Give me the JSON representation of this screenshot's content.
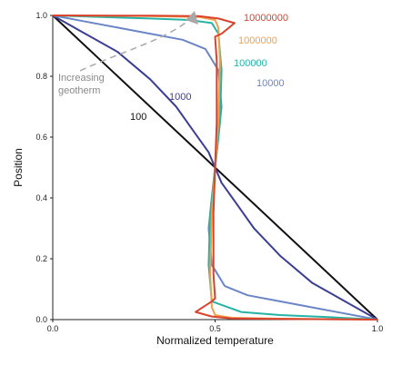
{
  "chart_data": {
    "type": "line",
    "xlabel": "Normalized temperature",
    "ylabel": "Position",
    "xlim": [
      0,
      1
    ],
    "ylim": [
      0,
      1
    ],
    "xticks": [
      "0.0",
      "0.5",
      "1.0"
    ],
    "yticks": [
      "0.0",
      "0.2",
      "0.4",
      "0.6",
      "0.8",
      "1.0"
    ],
    "grid": false,
    "annotation": "Increasing\ngeotherm",
    "series": [
      {
        "name": "100",
        "color": "#111111",
        "points": [
          [
            0,
            1
          ],
          [
            1,
            0
          ]
        ]
      },
      {
        "name": "1000",
        "color": "#3a3f94",
        "points": [
          [
            0,
            1
          ],
          [
            0.1,
            0.94
          ],
          [
            0.2,
            0.88
          ],
          [
            0.3,
            0.79
          ],
          [
            0.38,
            0.7
          ],
          [
            0.44,
            0.61
          ],
          [
            0.48,
            0.55
          ],
          [
            0.5,
            0.5
          ],
          [
            0.52,
            0.45
          ],
          [
            0.56,
            0.39
          ],
          [
            0.62,
            0.3
          ],
          [
            0.7,
            0.21
          ],
          [
            0.8,
            0.12
          ],
          [
            0.9,
            0.06
          ],
          [
            1,
            0
          ]
        ]
      },
      {
        "name": "10000",
        "color": "#6a86c6",
        "points": [
          [
            0,
            1
          ],
          [
            0.1,
            0.98
          ],
          [
            0.2,
            0.96
          ],
          [
            0.3,
            0.94
          ],
          [
            0.4,
            0.92
          ],
          [
            0.47,
            0.89
          ],
          [
            0.51,
            0.82
          ],
          [
            0.52,
            0.7
          ],
          [
            0.51,
            0.6
          ],
          [
            0.5,
            0.5
          ],
          [
            0.49,
            0.4
          ],
          [
            0.48,
            0.3
          ],
          [
            0.49,
            0.18
          ],
          [
            0.53,
            0.11
          ],
          [
            0.6,
            0.08
          ],
          [
            0.7,
            0.06
          ],
          [
            0.8,
            0.04
          ],
          [
            0.9,
            0.02
          ],
          [
            1,
            0
          ]
        ]
      },
      {
        "name": "100000",
        "color": "#25b3a6",
        "points": [
          [
            0,
            1
          ],
          [
            0.15,
            0.995
          ],
          [
            0.3,
            0.99
          ],
          [
            0.42,
            0.985
          ],
          [
            0.49,
            0.975
          ],
          [
            0.51,
            0.94
          ],
          [
            0.52,
            0.82
          ],
          [
            0.515,
            0.65
          ],
          [
            0.5,
            0.5
          ],
          [
            0.485,
            0.35
          ],
          [
            0.48,
            0.18
          ],
          [
            0.49,
            0.06
          ],
          [
            0.58,
            0.025
          ],
          [
            0.7,
            0.015
          ],
          [
            0.85,
            0.008
          ],
          [
            1,
            0
          ]
        ]
      },
      {
        "name": "1000000",
        "color": "#f0a04a",
        "points": [
          [
            0,
            1
          ],
          [
            0.3,
            0.998
          ],
          [
            0.45,
            0.995
          ],
          [
            0.5,
            0.985
          ],
          [
            0.51,
            0.96
          ],
          [
            0.515,
            0.85
          ],
          [
            0.51,
            0.65
          ],
          [
            0.5,
            0.5
          ],
          [
            0.49,
            0.35
          ],
          [
            0.485,
            0.15
          ],
          [
            0.49,
            0.04
          ],
          [
            0.5,
            0.015
          ],
          [
            0.55,
            0.006
          ],
          [
            0.7,
            0.003
          ],
          [
            1,
            0
          ]
        ]
      },
      {
        "name": "10000000",
        "color": "#d9432e",
        "points": [
          [
            0,
            1
          ],
          [
            0.3,
            0.999
          ],
          [
            0.45,
            0.998
          ],
          [
            0.51,
            0.99
          ],
          [
            0.56,
            0.975
          ],
          [
            0.52,
            0.94
          ],
          [
            0.5,
            0.93
          ],
          [
            0.505,
            0.85
          ],
          [
            0.505,
            0.65
          ],
          [
            0.5,
            0.5
          ],
          [
            0.495,
            0.35
          ],
          [
            0.495,
            0.15
          ],
          [
            0.5,
            0.07
          ],
          [
            0.49,
            0.06
          ],
          [
            0.44,
            0.025
          ],
          [
            0.49,
            0.01
          ],
          [
            0.55,
            0.004
          ],
          [
            0.7,
            0.002
          ],
          [
            1,
            0
          ]
        ]
      }
    ],
    "labels": [
      {
        "text": "100",
        "series": "100"
      },
      {
        "text": "1000",
        "series": "1000"
      },
      {
        "text": "10000",
        "series": "10000"
      },
      {
        "text": "100000",
        "series": "100000"
      },
      {
        "text": "1000000",
        "series": "1000000"
      },
      {
        "text": "10000000",
        "series": "10000000"
      }
    ]
  }
}
